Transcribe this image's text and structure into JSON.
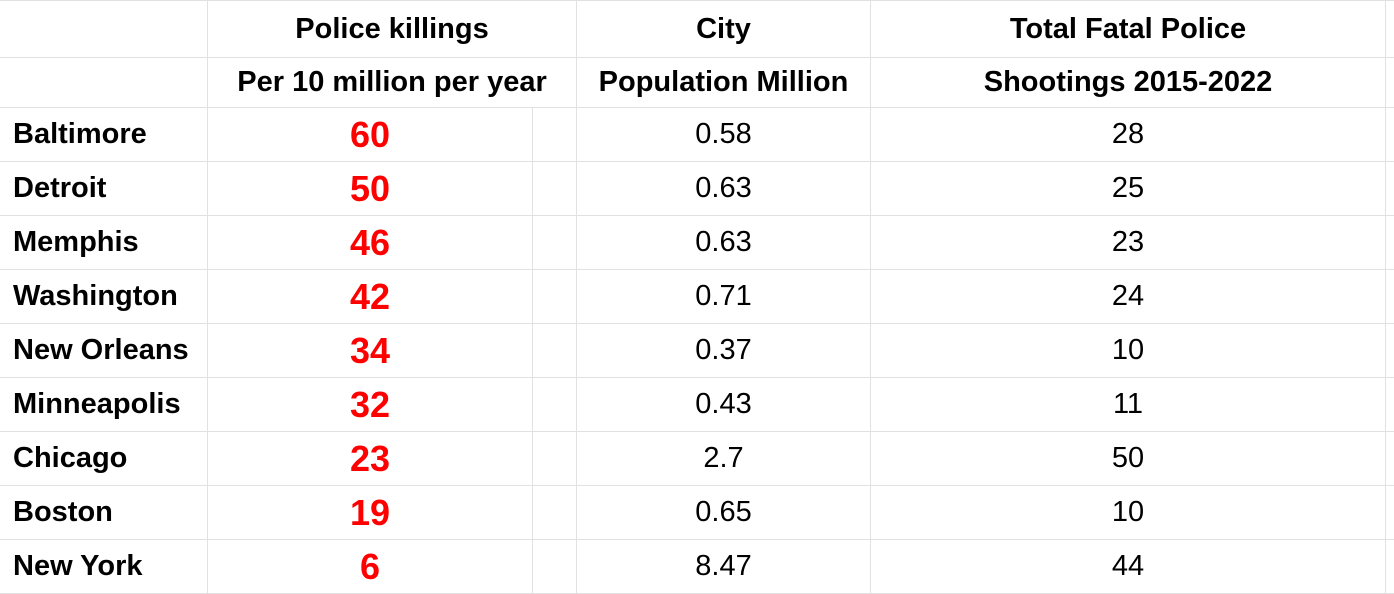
{
  "header": {
    "rate_line1": "Police killings",
    "rate_line2": "Per 10 million per year",
    "pop_line1": "City",
    "pop_line2": "Population Million",
    "total_line1": "Total Fatal Police",
    "total_line2": "Shootings 2015-2022"
  },
  "colors": {
    "rate": "#ff0000",
    "grid": "#e1e1e1",
    "text": "#000000"
  },
  "rows": [
    {
      "city": "Baltimore",
      "rate": "60",
      "population": "0.58",
      "total": "28"
    },
    {
      "city": "Detroit",
      "rate": "50",
      "population": "0.63",
      "total": "25"
    },
    {
      "city": "Memphis",
      "rate": "46",
      "population": "0.63",
      "total": "23"
    },
    {
      "city": "Washington",
      "rate": "42",
      "population": "0.71",
      "total": "24"
    },
    {
      "city": "New Orleans",
      "rate": "34",
      "population": "0.37",
      "total": "10"
    },
    {
      "city": "Minneapolis",
      "rate": "32",
      "population": "0.43",
      "total": "11"
    },
    {
      "city": "Chicago",
      "rate": "23",
      "population": "2.7",
      "total": "50"
    },
    {
      "city": "Boston",
      "rate": "19",
      "population": "0.65",
      "total": "10"
    },
    {
      "city": "New York",
      "rate": "6",
      "population": "8.47",
      "total": "44"
    }
  ]
}
